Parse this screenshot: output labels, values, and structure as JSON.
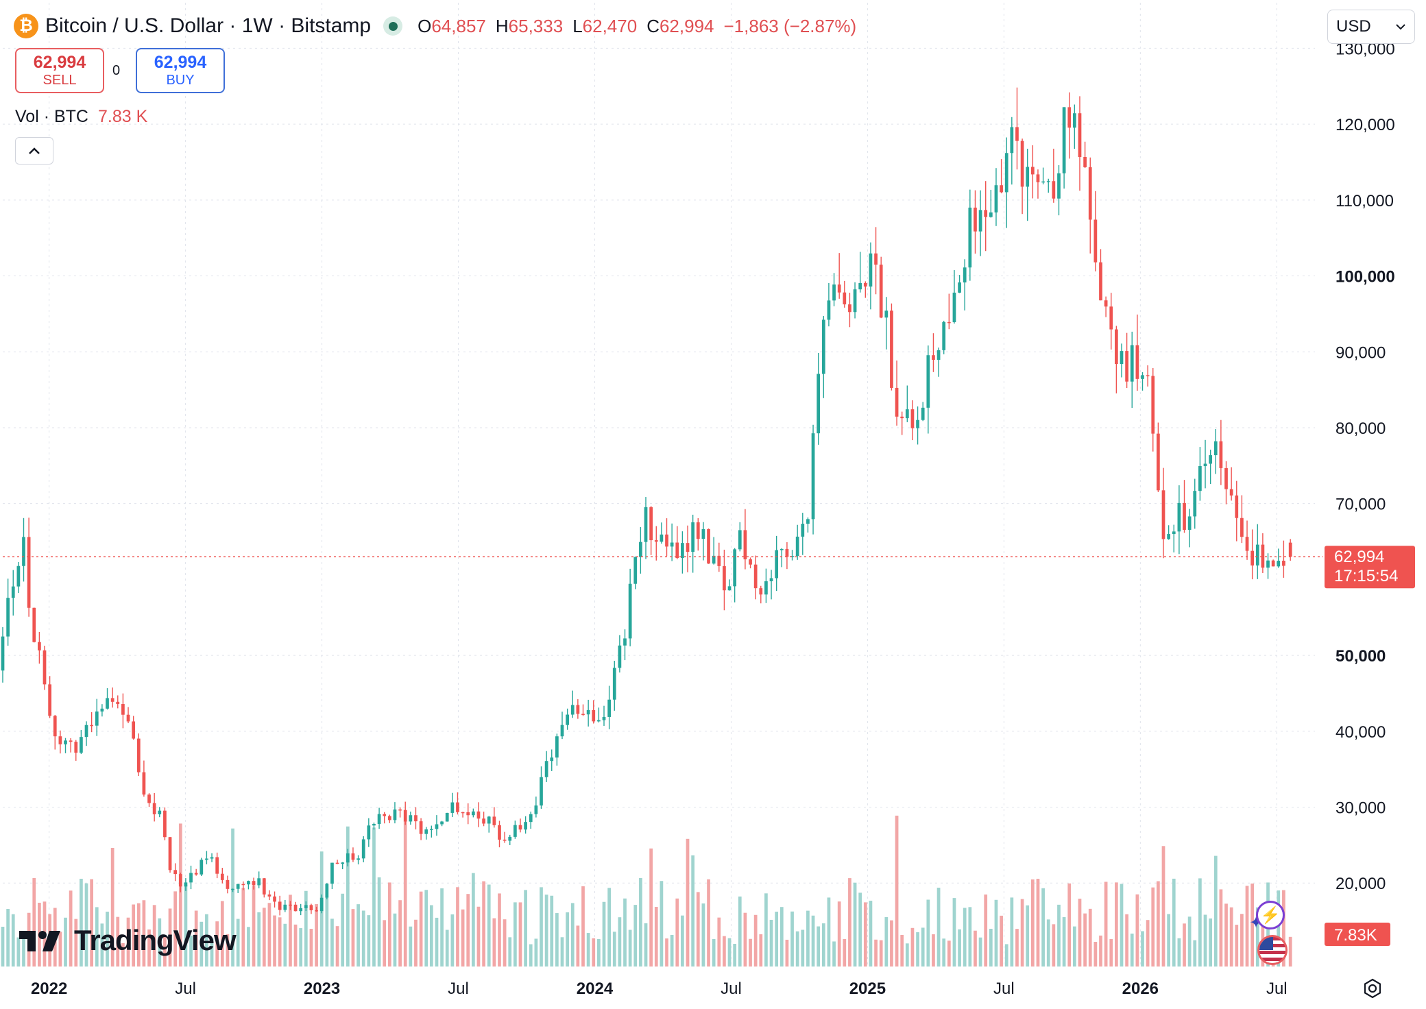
{
  "header": {
    "title": "Bitcoin / U.S. Dollar · 1W · Bitstamp",
    "icon": "bitcoin-icon",
    "ohlc": [
      {
        "label": "O",
        "value": "64,857"
      },
      {
        "label": "H",
        "value": "65,333"
      },
      {
        "label": "L",
        "value": "62,470"
      },
      {
        "label": "C",
        "value": "62,994"
      }
    ],
    "change": "−1,863 (−2.87%)"
  },
  "trade": {
    "sell_price": "62,994",
    "sell_label": "SELL",
    "buy_price": "62,994",
    "buy_label": "BUY",
    "spread": "0"
  },
  "volume_legend": {
    "label": "Vol · BTC",
    "value": "7.83 K"
  },
  "collapse_icon": "chevron-up-icon",
  "currency": {
    "selected": "USD"
  },
  "branding": {
    "name": "TradingView"
  },
  "colors": {
    "up": "#26a69a",
    "down": "#ef5350",
    "price_line": "#ef5350",
    "text": "#131722",
    "grid": "#e0e3eb"
  },
  "chart_data": {
    "type": "candlestick",
    "title": "Bitcoin / U.S. Dollar · 1W · Bitstamp",
    "price_axis": {
      "range": [
        9000,
        136000
      ],
      "ticks": [
        {
          "value": 130000,
          "label": "130,000",
          "bold": false
        },
        {
          "value": 120000,
          "label": "120,000",
          "bold": false
        },
        {
          "value": 110000,
          "label": "110,000",
          "bold": false
        },
        {
          "value": 100000,
          "label": "100,000",
          "bold": true
        },
        {
          "value": 90000,
          "label": "90,000",
          "bold": false
        },
        {
          "value": 80000,
          "label": "80,000",
          "bold": false
        },
        {
          "value": 70000,
          "label": "70,000",
          "bold": false
        },
        {
          "value": 50000,
          "label": "50,000",
          "bold": true
        },
        {
          "value": 40000,
          "label": "40,000",
          "bold": false
        },
        {
          "value": 30000,
          "label": "30,000",
          "bold": false
        },
        {
          "value": 20000,
          "label": "20,000",
          "bold": false
        }
      ]
    },
    "time_axis": {
      "start": 2021.83,
      "end": 2026.64,
      "ticks": [
        {
          "value": 2022.0,
          "label": "2022",
          "bold": true
        },
        {
          "value": 2022.5,
          "label": "Jul",
          "bold": false
        },
        {
          "value": 2023.0,
          "label": "2023",
          "bold": true
        },
        {
          "value": 2023.5,
          "label": "Jul",
          "bold": false
        },
        {
          "value": 2024.0,
          "label": "2024",
          "bold": true
        },
        {
          "value": 2024.5,
          "label": "Jul",
          "bold": false
        },
        {
          "value": 2025.0,
          "label": "2025",
          "bold": true
        },
        {
          "value": 2025.5,
          "label": "Jul",
          "bold": false
        },
        {
          "value": 2026.0,
          "label": "2026",
          "bold": true
        },
        {
          "value": 2026.5,
          "label": "Jul",
          "bold": false
        }
      ]
    },
    "last_price": {
      "value": 62994,
      "label": "62,994",
      "countdown": "17:15:54"
    },
    "last_volume": {
      "label": "7.83K"
    },
    "anchors": [
      [
        2021.83,
        48000
      ],
      [
        2021.86,
        58000
      ],
      [
        2021.9,
        62000
      ],
      [
        2021.93,
        66000
      ],
      [
        2021.95,
        55000
      ],
      [
        2022.0,
        47000
      ],
      [
        2022.06,
        37000
      ],
      [
        2022.12,
        38500
      ],
      [
        2022.2,
        42000
      ],
      [
        2022.26,
        46000
      ],
      [
        2022.33,
        38000
      ],
      [
        2022.38,
        30000
      ],
      [
        2022.43,
        29500
      ],
      [
        2022.46,
        22000
      ],
      [
        2022.5,
        19500
      ],
      [
        2022.6,
        23500
      ],
      [
        2022.68,
        19500
      ],
      [
        2022.78,
        20500
      ],
      [
        2022.86,
        16500
      ],
      [
        2022.95,
        16800
      ],
      [
        2023.0,
        16600
      ],
      [
        2023.06,
        23000
      ],
      [
        2023.15,
        23500
      ],
      [
        2023.2,
        28000
      ],
      [
        2023.3,
        29500
      ],
      [
        2023.4,
        26500
      ],
      [
        2023.5,
        30500
      ],
      [
        2023.6,
        29000
      ],
      [
        2023.68,
        26000
      ],
      [
        2023.78,
        27500
      ],
      [
        2023.85,
        37000
      ],
      [
        2023.95,
        43500
      ],
      [
        2024.05,
        42000
      ],
      [
        2024.12,
        52000
      ],
      [
        2024.2,
        68000
      ],
      [
        2024.3,
        63000
      ],
      [
        2024.4,
        67500
      ],
      [
        2024.5,
        57500
      ],
      [
        2024.55,
        66500
      ],
      [
        2024.62,
        58500
      ],
      [
        2024.7,
        63000
      ],
      [
        2024.8,
        68500
      ],
      [
        2024.85,
        90000
      ],
      [
        2024.9,
        97000
      ],
      [
        2024.96,
        94000
      ],
      [
        2025.05,
        102000
      ],
      [
        2025.12,
        84000
      ],
      [
        2025.2,
        82500
      ],
      [
        2025.3,
        95000
      ],
      [
        2025.38,
        105000
      ],
      [
        2025.45,
        107500
      ],
      [
        2025.55,
        118500
      ],
      [
        2025.6,
        113000
      ],
      [
        2025.7,
        112000
      ],
      [
        2025.76,
        123000
      ],
      [
        2025.82,
        110000
      ],
      [
        2025.9,
        92000
      ],
      [
        2025.97,
        88000
      ],
      [
        2026.05,
        88500
      ],
      [
        2026.1,
        67000
      ],
      [
        2026.18,
        68000
      ],
      [
        2026.3,
        78000
      ],
      [
        2026.38,
        66000
      ],
      [
        2026.45,
        63000
      ],
      [
        2026.55,
        63200
      ]
    ],
    "last_candle": {
      "open": 64857,
      "high": 65333,
      "low": 62470,
      "close": 62994
    }
  }
}
